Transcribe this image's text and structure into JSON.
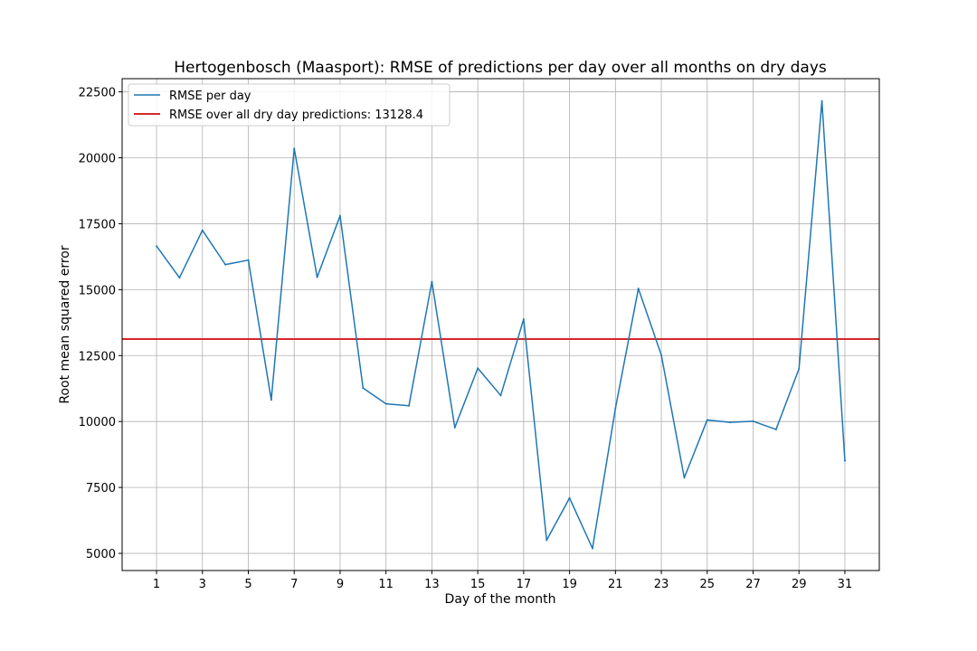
{
  "chart_data": {
    "type": "line",
    "title": "Hertogenbosch (Maasport): RMSE of predictions per day over all months on dry days",
    "xlabel": "Day of the month",
    "ylabel": "Root mean squared error",
    "xlim": [
      -0.5,
      32.5
    ],
    "ylim": [
      4350,
      23000
    ],
    "x_ticks": [
      1,
      3,
      5,
      7,
      9,
      11,
      13,
      15,
      17,
      19,
      21,
      23,
      25,
      27,
      29,
      31
    ],
    "y_ticks": [
      5000,
      7500,
      10000,
      12500,
      15000,
      17500,
      20000,
      22500
    ],
    "grid": true,
    "legend_position": "top-left",
    "series": [
      {
        "name": "RMSE per day",
        "color": "#1f77b4",
        "x": [
          1,
          2,
          3,
          4,
          5,
          6,
          7,
          8,
          9,
          10,
          11,
          12,
          13,
          14,
          15,
          16,
          17,
          18,
          19,
          20,
          21,
          22,
          23,
          24,
          25,
          26,
          27,
          28,
          29,
          30,
          31
        ],
        "values": [
          16650,
          15450,
          17250,
          15950,
          16120,
          10820,
          20350,
          15470,
          17800,
          11270,
          10670,
          10600,
          15300,
          9770,
          12020,
          10990,
          13880,
          5500,
          7100,
          5190,
          10500,
          15040,
          12520,
          7870,
          10060,
          9970,
          10010,
          9700,
          12000,
          22150,
          8510
        ]
      }
    ],
    "reference_lines": [
      {
        "label": "RMSE over all dry day predictions: 13128.4",
        "value": 13128.4,
        "color": "#d62728"
      }
    ]
  }
}
